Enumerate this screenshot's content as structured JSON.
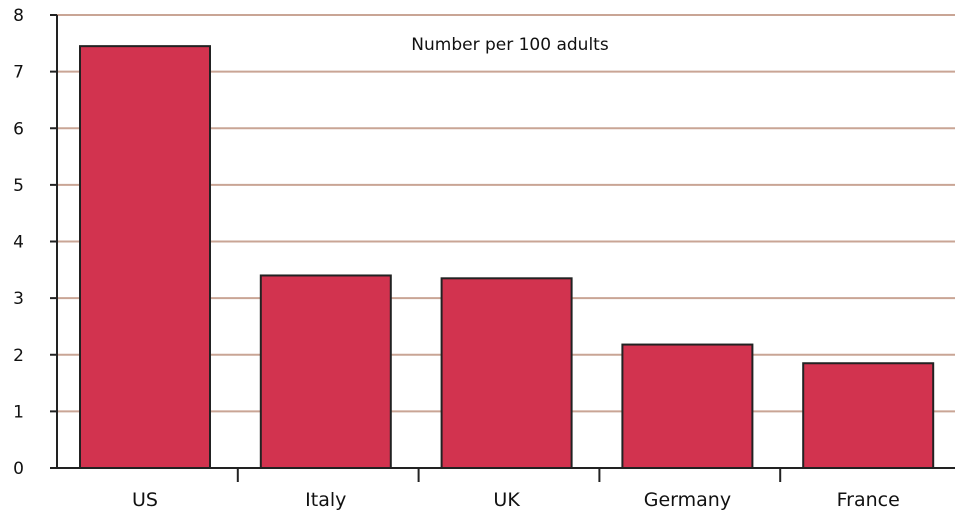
{
  "chart_data": {
    "type": "bar",
    "title": "Number per 100 adults",
    "xlabel": "",
    "ylabel": "",
    "categories": [
      "US",
      "Italy",
      "UK",
      "Germany",
      "France"
    ],
    "values": [
      7.45,
      3.4,
      3.35,
      2.18,
      1.85
    ],
    "ylim": [
      0,
      8
    ],
    "yticks": [
      "0",
      "1",
      "2",
      "3",
      "4",
      "5",
      "6",
      "7",
      "8"
    ],
    "grid": true,
    "legend": "none",
    "colors": {
      "bar": "#d2334f",
      "grid": "#c9a595",
      "axis": "#222222"
    }
  }
}
